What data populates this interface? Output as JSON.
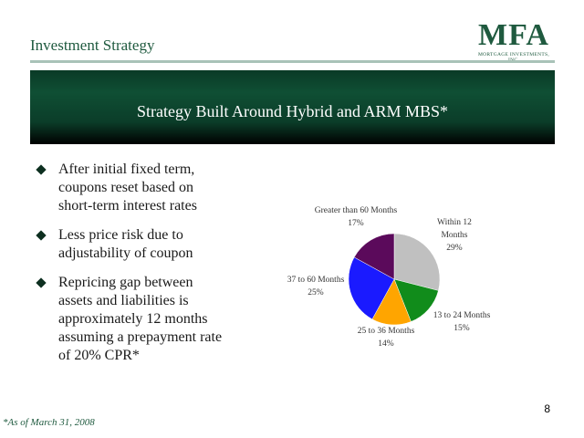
{
  "header": {
    "title": "Investment Strategy"
  },
  "logo": {
    "mark": "MFA",
    "sub": "MORTGAGE INVESTMENTS, INC."
  },
  "banner": {
    "title": "Strategy Built Around Hybrid and ARM MBS*"
  },
  "bullets": [
    "After initial fixed term, coupons reset based on short-term interest rates",
    "Less price risk due to adjustability of coupon",
    "Repricing gap between assets and liabilities is approximately 12 months assuming a prepayment rate of 20% CPR*"
  ],
  "chart_data": {
    "type": "pie",
    "slices": [
      {
        "label": "Within 12 Months",
        "value": 29,
        "pct": "29%",
        "color": "#c0c0c0"
      },
      {
        "label": "13 to 24 Months",
        "value": 15,
        "pct": "15%",
        "color": "#118c1b"
      },
      {
        "label": "25 to 36 Months",
        "value": 14,
        "pct": "14%",
        "color": "#ffa500"
      },
      {
        "label": "37 to 60 Months",
        "value": 25,
        "pct": "25%",
        "color": "#1a1aff"
      },
      {
        "label": "Greater than 60 Months",
        "value": 17,
        "pct": "17%",
        "color": "#5b0a5b"
      }
    ]
  },
  "page_number": "8",
  "footnote": "*As of March 31, 2008"
}
